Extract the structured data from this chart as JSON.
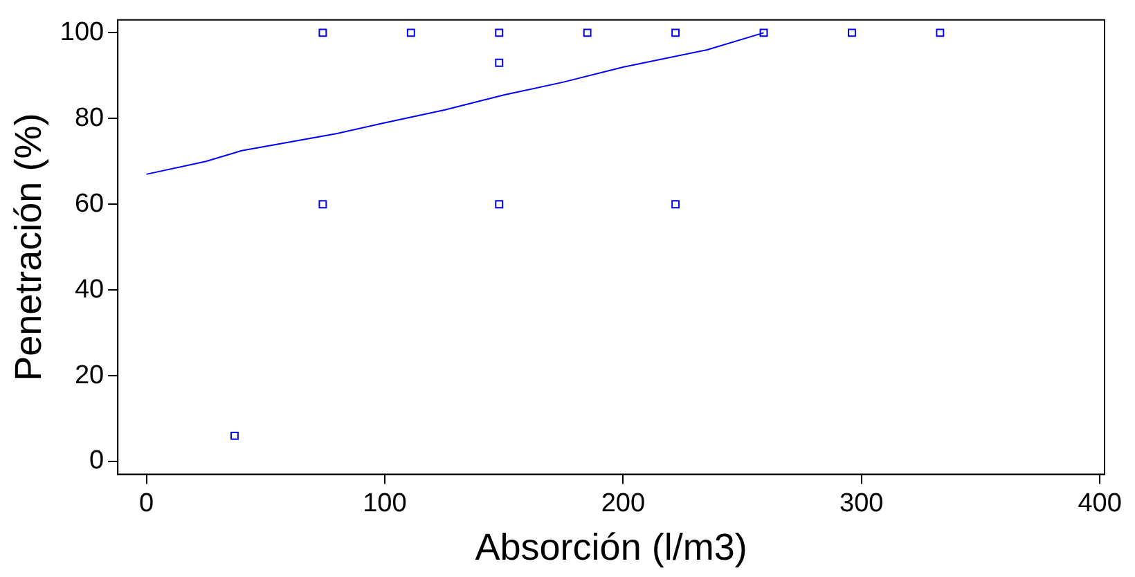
{
  "chart_data": {
    "type": "scatter",
    "xlabel": "Absorción (l/m3)",
    "ylabel": "Penetración (%)",
    "xlim": [
      -12,
      402
    ],
    "ylim": [
      -3,
      103
    ],
    "xticks": [
      0,
      100,
      200,
      300,
      400
    ],
    "yticks": [
      0,
      20,
      40,
      60,
      80,
      100
    ],
    "grid": false,
    "legend": false,
    "marker": "square",
    "series": [
      {
        "color": "#0000ff",
        "x": [
          37,
          74,
          74,
          111,
          148,
          148,
          148,
          185,
          222,
          222,
          259,
          296,
          333
        ],
        "values": [
          6,
          100,
          60,
          100,
          100,
          93,
          60,
          100,
          100,
          60,
          100,
          100,
          100
        ]
      },
      {
        "type": "line",
        "color": "#0000ff",
        "marker": "none",
        "x": [
          0,
          25,
          40,
          80,
          100,
          125,
          150,
          175,
          200,
          235,
          259
        ],
        "values": [
          67,
          70,
          72.5,
          76.5,
          79,
          82,
          85.5,
          88.5,
          92,
          96,
          100
        ]
      }
    ]
  }
}
